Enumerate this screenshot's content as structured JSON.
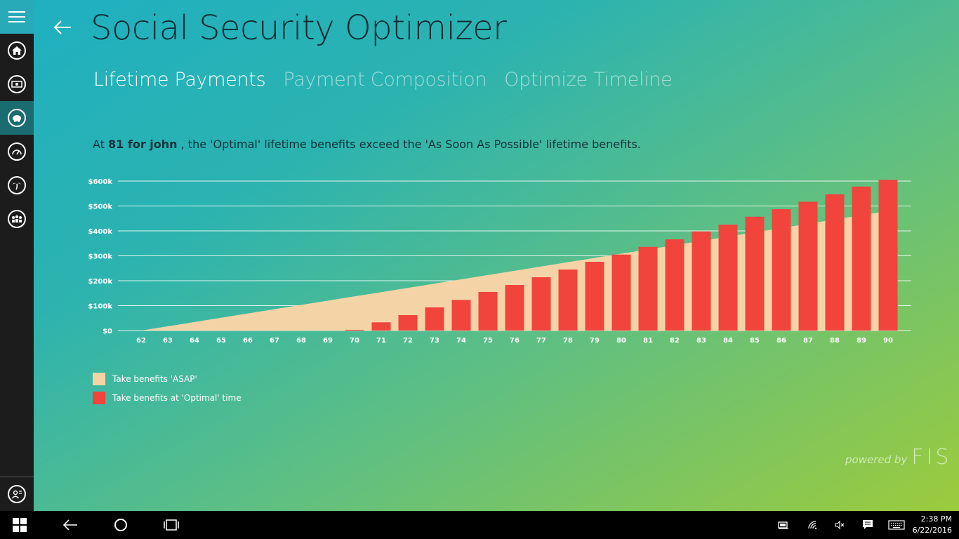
{
  "app": {
    "title": "Social Security Optimizer"
  },
  "tabs": [
    {
      "label": "Lifetime Payments",
      "active": true
    },
    {
      "label": "Payment Composition",
      "active": false
    },
    {
      "label": "Optimize Timeline",
      "active": false
    }
  ],
  "summary": {
    "prefix": "At ",
    "highlight": "81 for john",
    "suffix": " , the 'Optimal' lifetime benefits exceed the 'As Soon As Possible' lifetime benefits."
  },
  "nav": {
    "items": [
      "home-icon",
      "money-icon",
      "piggy-bank-icon",
      "gauge-icon",
      "palm-tree-icon",
      "people-icon"
    ],
    "active_index": 2,
    "bottom_item": "user-profile-icon"
  },
  "chart_data": {
    "type": "bar",
    "x": [
      62,
      63,
      64,
      65,
      66,
      67,
      68,
      69,
      70,
      71,
      72,
      73,
      74,
      75,
      76,
      77,
      78,
      79,
      80,
      81,
      82,
      83,
      84,
      85,
      86,
      87,
      88,
      89,
      90
    ],
    "y_ticks": [
      "$0",
      "$100k",
      "$200k",
      "$300k",
      "$400k",
      "$500k",
      "$600k"
    ],
    "ylim": [
      0,
      600000
    ],
    "grid": true,
    "area_series": {
      "name": "Take benefits 'ASAP'",
      "color": "#f4d4a6",
      "x": [
        62,
        90
      ],
      "values": [
        0,
        480000
      ]
    },
    "bar_series": {
      "name": "Take benefits at 'Optimal' time",
      "color": "#f0443c",
      "values": [
        0,
        0,
        0,
        0,
        0,
        0,
        0,
        0,
        3000,
        33000,
        62000,
        93000,
        123000,
        155000,
        183000,
        214000,
        245000,
        276000,
        305000,
        336000,
        366000,
        398000,
        425000,
        457000,
        487000,
        517000,
        547000,
        578000,
        605000
      ]
    }
  },
  "legend": [
    {
      "label": "Take benefits 'ASAP'",
      "color": "#f4d4a6"
    },
    {
      "label": "Take benefits at 'Optimal' time",
      "color": "#f0443c"
    }
  ],
  "footer": {
    "powered_by": "powered by",
    "brand": "FIS"
  },
  "taskbar": {
    "time": "2:38 PM",
    "date": "6/22/2016"
  }
}
